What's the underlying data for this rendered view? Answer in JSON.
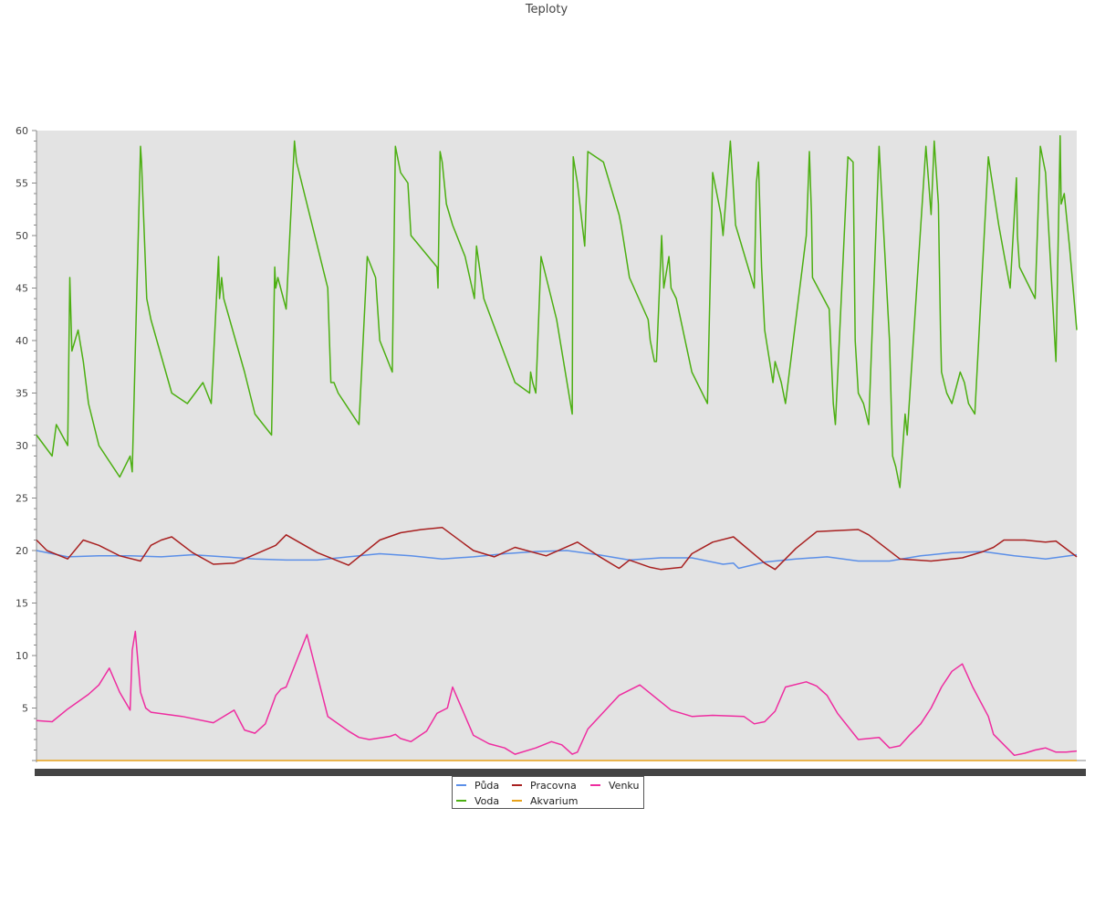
{
  "chart_data": {
    "type": "line",
    "title": "Teploty",
    "xlabel": "",
    "ylabel": "",
    "ylim": [
      0,
      60
    ],
    "yticks": [
      5,
      10,
      15,
      20,
      25,
      30,
      35,
      40,
      45,
      50,
      55,
      60
    ],
    "xlim": [
      0,
      1000
    ],
    "grid": false,
    "legend": "bottom-center",
    "series": [
      {
        "name": "Půda",
        "color": "#5b8fe8",
        "x": [
          0,
          30,
          60,
          90,
          120,
          150,
          180,
          210,
          240,
          270,
          300,
          330,
          360,
          390,
          420,
          450,
          480,
          510,
          540,
          570,
          600,
          630,
          660,
          670,
          675,
          700,
          730,
          760,
          790,
          820,
          850,
          880,
          910,
          940,
          970,
          1000
        ],
        "y": [
          20.0,
          19.4,
          19.5,
          19.5,
          19.4,
          19.6,
          19.4,
          19.2,
          19.1,
          19.1,
          19.4,
          19.7,
          19.5,
          19.2,
          19.4,
          19.7,
          19.9,
          20.0,
          19.6,
          19.1,
          19.3,
          19.3,
          18.7,
          18.8,
          18.3,
          18.9,
          19.2,
          19.4,
          19.0,
          19.0,
          19.5,
          19.8,
          19.9,
          19.5,
          19.2,
          19.6
        ]
      },
      {
        "name": "Voda",
        "color": "#4caf12",
        "x": [
          0,
          15,
          19,
          30,
          32,
          34,
          40,
          45,
          50,
          60,
          80,
          90,
          92,
          100,
          101,
          104,
          106,
          110,
          130,
          145,
          160,
          168,
          175,
          176,
          178,
          180,
          200,
          210,
          226,
          229,
          230,
          232,
          240,
          248,
          250,
          280,
          281,
          283,
          286,
          290,
          310,
          318,
          326,
          330,
          342,
          345,
          350,
          357,
          360,
          385,
          386,
          388,
          390,
          394,
          400,
          412,
          421,
          423,
          430,
          445,
          460,
          474,
          475,
          477,
          480,
          485,
          500,
          515,
          516,
          520,
          527,
          530,
          545,
          560,
          562,
          570,
          588,
          590,
          594,
          596,
          601,
          603,
          608,
          610,
          615,
          630,
          645,
          650,
          658,
          660,
          667,
          672,
          690,
          692,
          694,
          697,
          700,
          708,
          710,
          716,
          720,
          740,
          743,
          745,
          746,
          762,
          766,
          768,
          780,
          785,
          787,
          790,
          795,
          800,
          810,
          820,
          823,
          826,
          830,
          835,
          837,
          855,
          860,
          863,
          867,
          868,
          869,
          870,
          875,
          880,
          888,
          892,
          896,
          902,
          915,
          925,
          936,
          942,
          943,
          945,
          960,
          965,
          970,
          980,
          984,
          985,
          988,
          993,
          1000
        ],
        "y": [
          31,
          29,
          32,
          30,
          46,
          39,
          41,
          38,
          34,
          30,
          27,
          29,
          27.5,
          58.5,
          57,
          49,
          44,
          42,
          35,
          34,
          36,
          34,
          48,
          44,
          46,
          44,
          37,
          33,
          31,
          47,
          45,
          46,
          43,
          59,
          57,
          45,
          42,
          36,
          36,
          35,
          32,
          48,
          46,
          40,
          37,
          58.5,
          56,
          55,
          50,
          47,
          45,
          58,
          57,
          53,
          51,
          48,
          44,
          49,
          44,
          40,
          36,
          35,
          37,
          36,
          35,
          48,
          42,
          33,
          57.5,
          55,
          49,
          58,
          57,
          52,
          51,
          46,
          42,
          40,
          38,
          38,
          50,
          45,
          48,
          45,
          44,
          37,
          34,
          56,
          52,
          50,
          59,
          51,
          45,
          55,
          57,
          47,
          41,
          36,
          38,
          36,
          34,
          50,
          58,
          52,
          46,
          43,
          34,
          32,
          57.5,
          57,
          40,
          35,
          34,
          32,
          58.5,
          40,
          29,
          28,
          26,
          33,
          31,
          58.5,
          52,
          59,
          53,
          47,
          41,
          37,
          35,
          34,
          37,
          36,
          34,
          33,
          57.5,
          51,
          45,
          55.5,
          50,
          47,
          44,
          58.5,
          56,
          38,
          59.5,
          53,
          54,
          49,
          41
        ]
      },
      {
        "name": "Pracovna",
        "color": "#a82020",
        "x": [
          0,
          10,
          30,
          45,
          60,
          80,
          100,
          110,
          120,
          130,
          150,
          170,
          190,
          200,
          230,
          240,
          270,
          300,
          330,
          350,
          370,
          390,
          420,
          440,
          460,
          490,
          520,
          540,
          560,
          570,
          590,
          600,
          620,
          630,
          650,
          670,
          700,
          710,
          730,
          750,
          770,
          790,
          800,
          830,
          860,
          890,
          910,
          920,
          930,
          950,
          970,
          980,
          1000
        ],
        "y": [
          21.0,
          20.0,
          19.2,
          21.0,
          20.5,
          19.5,
          19.0,
          20.5,
          21.0,
          21.3,
          19.8,
          18.7,
          18.8,
          19.2,
          20.5,
          21.5,
          19.8,
          18.6,
          21.0,
          21.7,
          22.0,
          22.2,
          20.0,
          19.4,
          20.3,
          19.5,
          20.8,
          19.5,
          18.3,
          19.1,
          18.4,
          18.2,
          18.4,
          19.7,
          20.8,
          21.3,
          18.8,
          18.2,
          20.2,
          21.8,
          21.9,
          22.0,
          21.5,
          19.2,
          19.0,
          19.3,
          19.9,
          20.3,
          21.0,
          21.0,
          20.8,
          20.9,
          19.4
        ]
      },
      {
        "name": "Venku",
        "color": "#ee2da0",
        "x": [
          0,
          15,
          30,
          50,
          60,
          65,
          70,
          80,
          90,
          92,
          95,
          100,
          105,
          110,
          140,
          170,
          190,
          200,
          210,
          220,
          230,
          235,
          240,
          260,
          280,
          300,
          310,
          320,
          340,
          345,
          350,
          360,
          375,
          385,
          395,
          400,
          420,
          435,
          450,
          460,
          480,
          495,
          505,
          515,
          520,
          530,
          560,
          580,
          610,
          630,
          650,
          680,
          690,
          700,
          710,
          720,
          740,
          750,
          760,
          770,
          790,
          810,
          820,
          830,
          840,
          850,
          860,
          870,
          880,
          890,
          900,
          915,
          920,
          940,
          950,
          960,
          970,
          980,
          990,
          1000
        ],
        "y": [
          3.8,
          3.7,
          4.9,
          6.3,
          7.2,
          8.0,
          8.8,
          6.5,
          4.8,
          10.5,
          12.3,
          6.5,
          5.0,
          4.6,
          4.2,
          3.6,
          4.8,
          2.9,
          2.6,
          3.5,
          6.2,
          6.8,
          7.0,
          12.0,
          4.2,
          2.8,
          2.2,
          2.0,
          2.3,
          2.5,
          2.1,
          1.8,
          2.8,
          4.5,
          5.0,
          7.0,
          2.4,
          1.6,
          1.2,
          0.6,
          1.2,
          1.8,
          1.5,
          0.6,
          0.8,
          3.0,
          6.2,
          7.2,
          4.8,
          4.2,
          4.3,
          4.2,
          3.5,
          3.7,
          4.7,
          7.0,
          7.5,
          7.1,
          6.2,
          4.5,
          2.0,
          2.2,
          1.2,
          1.4,
          2.5,
          3.5,
          5.0,
          7.0,
          8.5,
          9.2,
          7.0,
          4.2,
          2.5,
          0.5,
          0.7,
          1.0,
          1.2,
          0.8,
          0.8,
          0.9
        ]
      },
      {
        "name": "Akvarium",
        "color": "#e8a21a",
        "x": [
          0,
          1000
        ],
        "y": [
          0,
          0
        ]
      }
    ]
  },
  "legend_layout": [
    [
      "Půda",
      "Pracovna",
      "Venku"
    ],
    [
      "Voda",
      "Akvarium"
    ]
  ]
}
